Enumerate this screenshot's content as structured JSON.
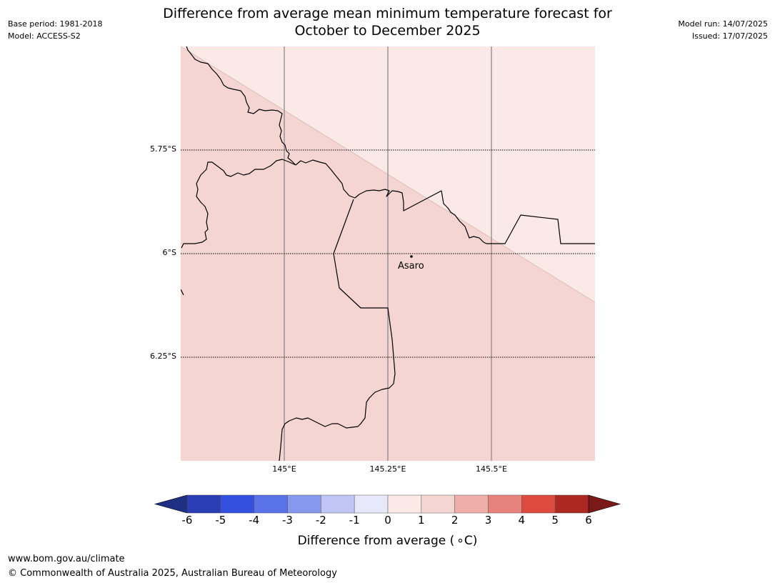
{
  "header": {
    "base_period": "Base period: 1981-2018",
    "model": "Model: ACCESS-S2",
    "model_run": "Model run: 14/07/2025",
    "issued": "Issued: 17/07/2025",
    "title_line1": "Difference from average mean minimum temperature forecast for",
    "title_line2": "October to December 2025"
  },
  "map": {
    "latitude_labels": [
      "5.75°S",
      "6°S",
      "6.25°S"
    ],
    "longitude_labels": [
      "145°E",
      "145.25°E",
      "145.5°E"
    ],
    "place": {
      "name": "Asaro"
    },
    "regions": [
      {
        "category": "0 to 1",
        "color": "#fbe9e7"
      },
      {
        "category": "1 to 2",
        "color": "#f4d5d2"
      }
    ]
  },
  "colorbar": {
    "label_text": "Difference from average (",
    "label_unit": "∘C)",
    "ticks": [
      "-6",
      "-5",
      "-4",
      "-3",
      "-2",
      "-1",
      "0",
      "1",
      "2",
      "3",
      "4",
      "5",
      "6"
    ],
    "colors": {
      "below_min": "#1f2f84",
      "bins": [
        "#2a3db5",
        "#3350e0",
        "#5a72e8",
        "#8598ee",
        "#bfc6f5",
        "#e7e9fb",
        "#fbe9e7",
        "#f4d5d2",
        "#efaea9",
        "#e8827c",
        "#dd4b3f",
        "#ad2820"
      ],
      "above_max": "#7a1a18"
    }
  },
  "footer": {
    "website": "www.bom.gov.au/climate",
    "copyright": "© Commonwealth of Australia 2025, Australian Bureau of Meteorology"
  }
}
